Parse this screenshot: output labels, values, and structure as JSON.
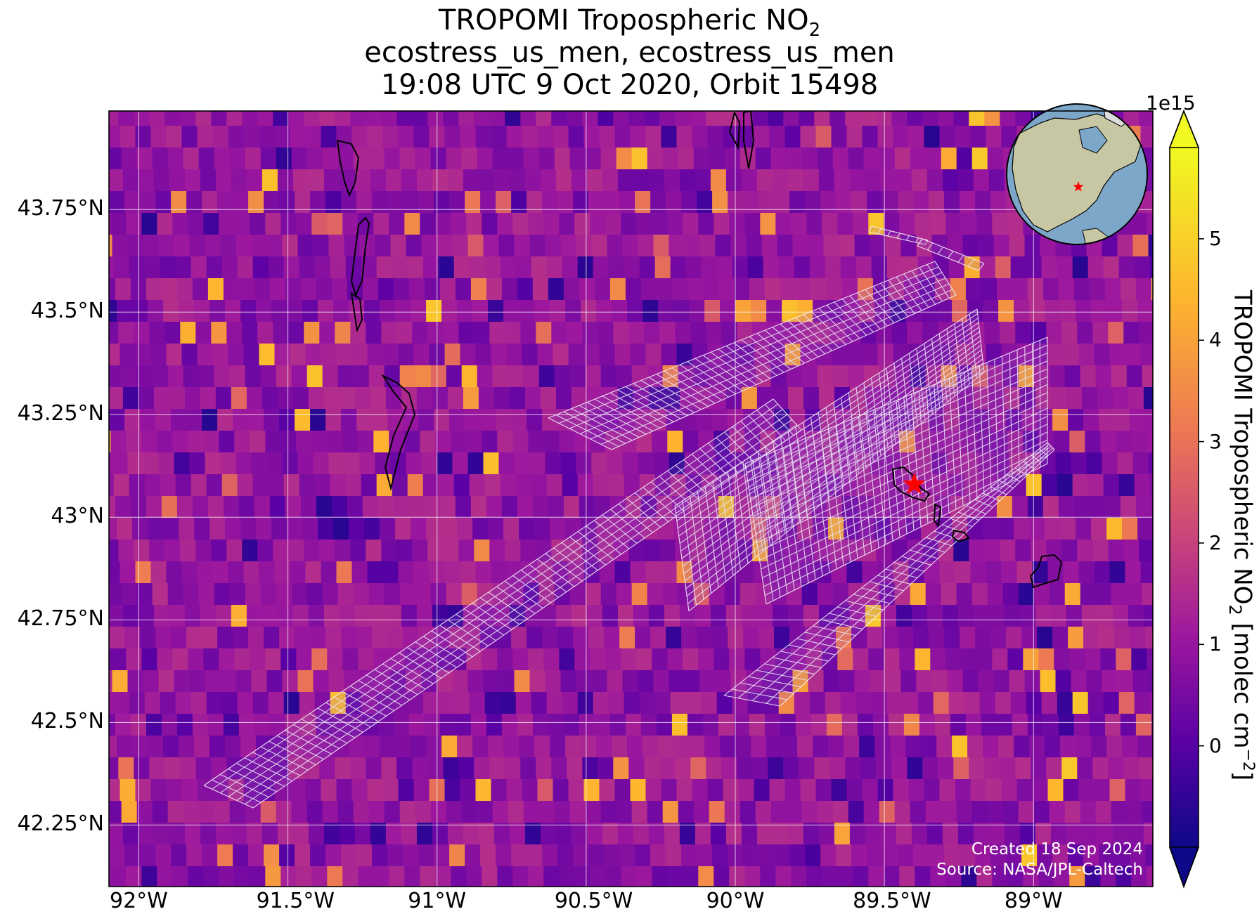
{
  "title": {
    "line1_main": "TROPOMI Tropospheric NO",
    "line1_sub": "2",
    "line2": "ecostress_us_men, ecostress_us_men",
    "line3": "19:08 UTC 9 Oct 2020, Orbit 15498"
  },
  "map": {
    "lon_range": [
      -92.1,
      -88.6
    ],
    "lat_range": [
      42.1,
      43.99
    ],
    "lon_ticks": [
      {
        "value": -92.0,
        "label": "92°W"
      },
      {
        "value": -91.5,
        "label": "91.5°W"
      },
      {
        "value": -91.0,
        "label": "91°W"
      },
      {
        "value": -90.5,
        "label": "90.5°W"
      },
      {
        "value": -90.0,
        "label": "90°W"
      },
      {
        "value": -89.5,
        "label": "89.5°W"
      },
      {
        "value": -89.0,
        "label": "89°W"
      }
    ],
    "lat_ticks": [
      {
        "value": 43.75,
        "label": "43.75°N"
      },
      {
        "value": 43.5,
        "label": "43.5°N"
      },
      {
        "value": 43.25,
        "label": "43.25°N"
      },
      {
        "value": 43.0,
        "label": "43°N"
      },
      {
        "value": 42.75,
        "label": "42.75°N"
      },
      {
        "value": 42.5,
        "label": "42.5°N"
      },
      {
        "value": 42.25,
        "label": "42.25°N"
      }
    ],
    "grid": true,
    "colormap": "plasma",
    "target_marker": {
      "lon": -89.4,
      "lat": 43.08,
      "color": "#ff0000",
      "symbol": "star"
    },
    "inset_globe": {
      "position": "top-right",
      "ocean_color": "#7da7c9",
      "land_color": "#c8c7a4",
      "marker_color": "#ff0000"
    }
  },
  "colorbar": {
    "range": [
      -1.0,
      5.9
    ],
    "ticks": [
      0,
      1,
      2,
      3,
      4,
      5
    ],
    "offset_label": "1e15",
    "label_main": "TROPOMI Tropospheric NO",
    "label_sub": "2",
    "label_unit_pre": " [molec cm",
    "label_unit_sup": "−2",
    "label_unit_post": "]",
    "extend": "both"
  },
  "footer": {
    "created": "Created 18 Sep 2024",
    "source": "Source: NASA/JPL-Caltech"
  }
}
